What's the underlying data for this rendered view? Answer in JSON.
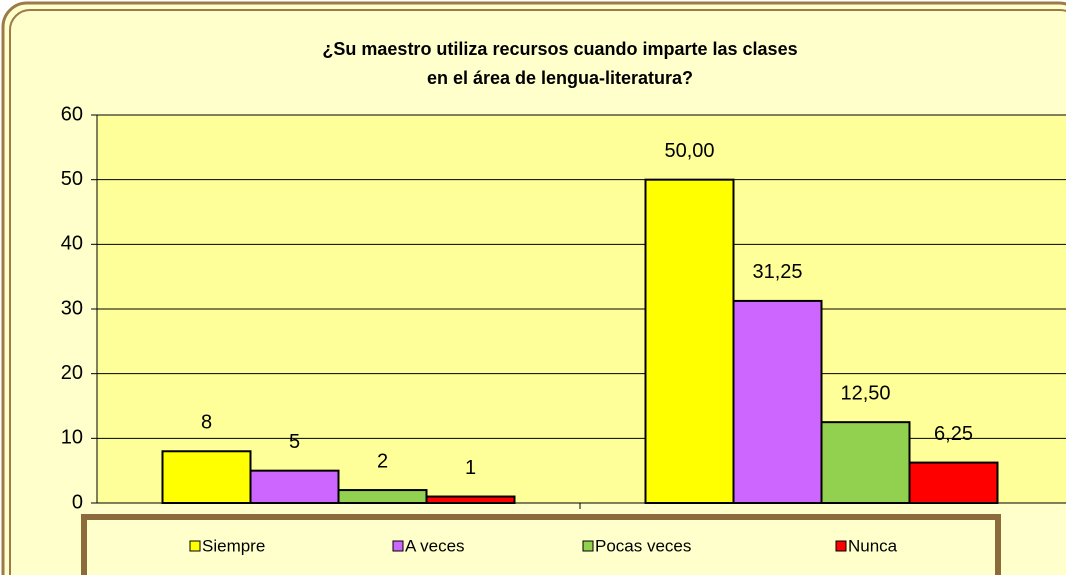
{
  "chart_data": {
    "type": "bar",
    "title": [
      "¿Su maestro utiliza  recursos cuando imparte las clases",
      "en el área de lengua-literatura?"
    ],
    "categories": [
      null,
      null
    ],
    "series": [
      {
        "name": "Siempre",
        "color": "#ffff00",
        "values": [
          8,
          50
        ],
        "value_labels": [
          "8",
          "50,00"
        ]
      },
      {
        "name": "A veces",
        "color": "#cc66ff",
        "values": [
          5,
          31.25
        ],
        "value_labels": [
          "5",
          "31,25"
        ]
      },
      {
        "name": "Pocas veces",
        "color": "#92d050",
        "values": [
          2,
          12.5
        ],
        "value_labels": [
          "2",
          "12,50"
        ]
      },
      {
        "name": "Nunca",
        "color": "#ff0000",
        "values": [
          1,
          6.25
        ],
        "value_labels": [
          "1",
          "6,25"
        ]
      }
    ],
    "ylim": [
      0,
      60
    ],
    "yticks": [
      0,
      10,
      20,
      30,
      40,
      50,
      60
    ],
    "grid": true,
    "legend": "bottom"
  }
}
